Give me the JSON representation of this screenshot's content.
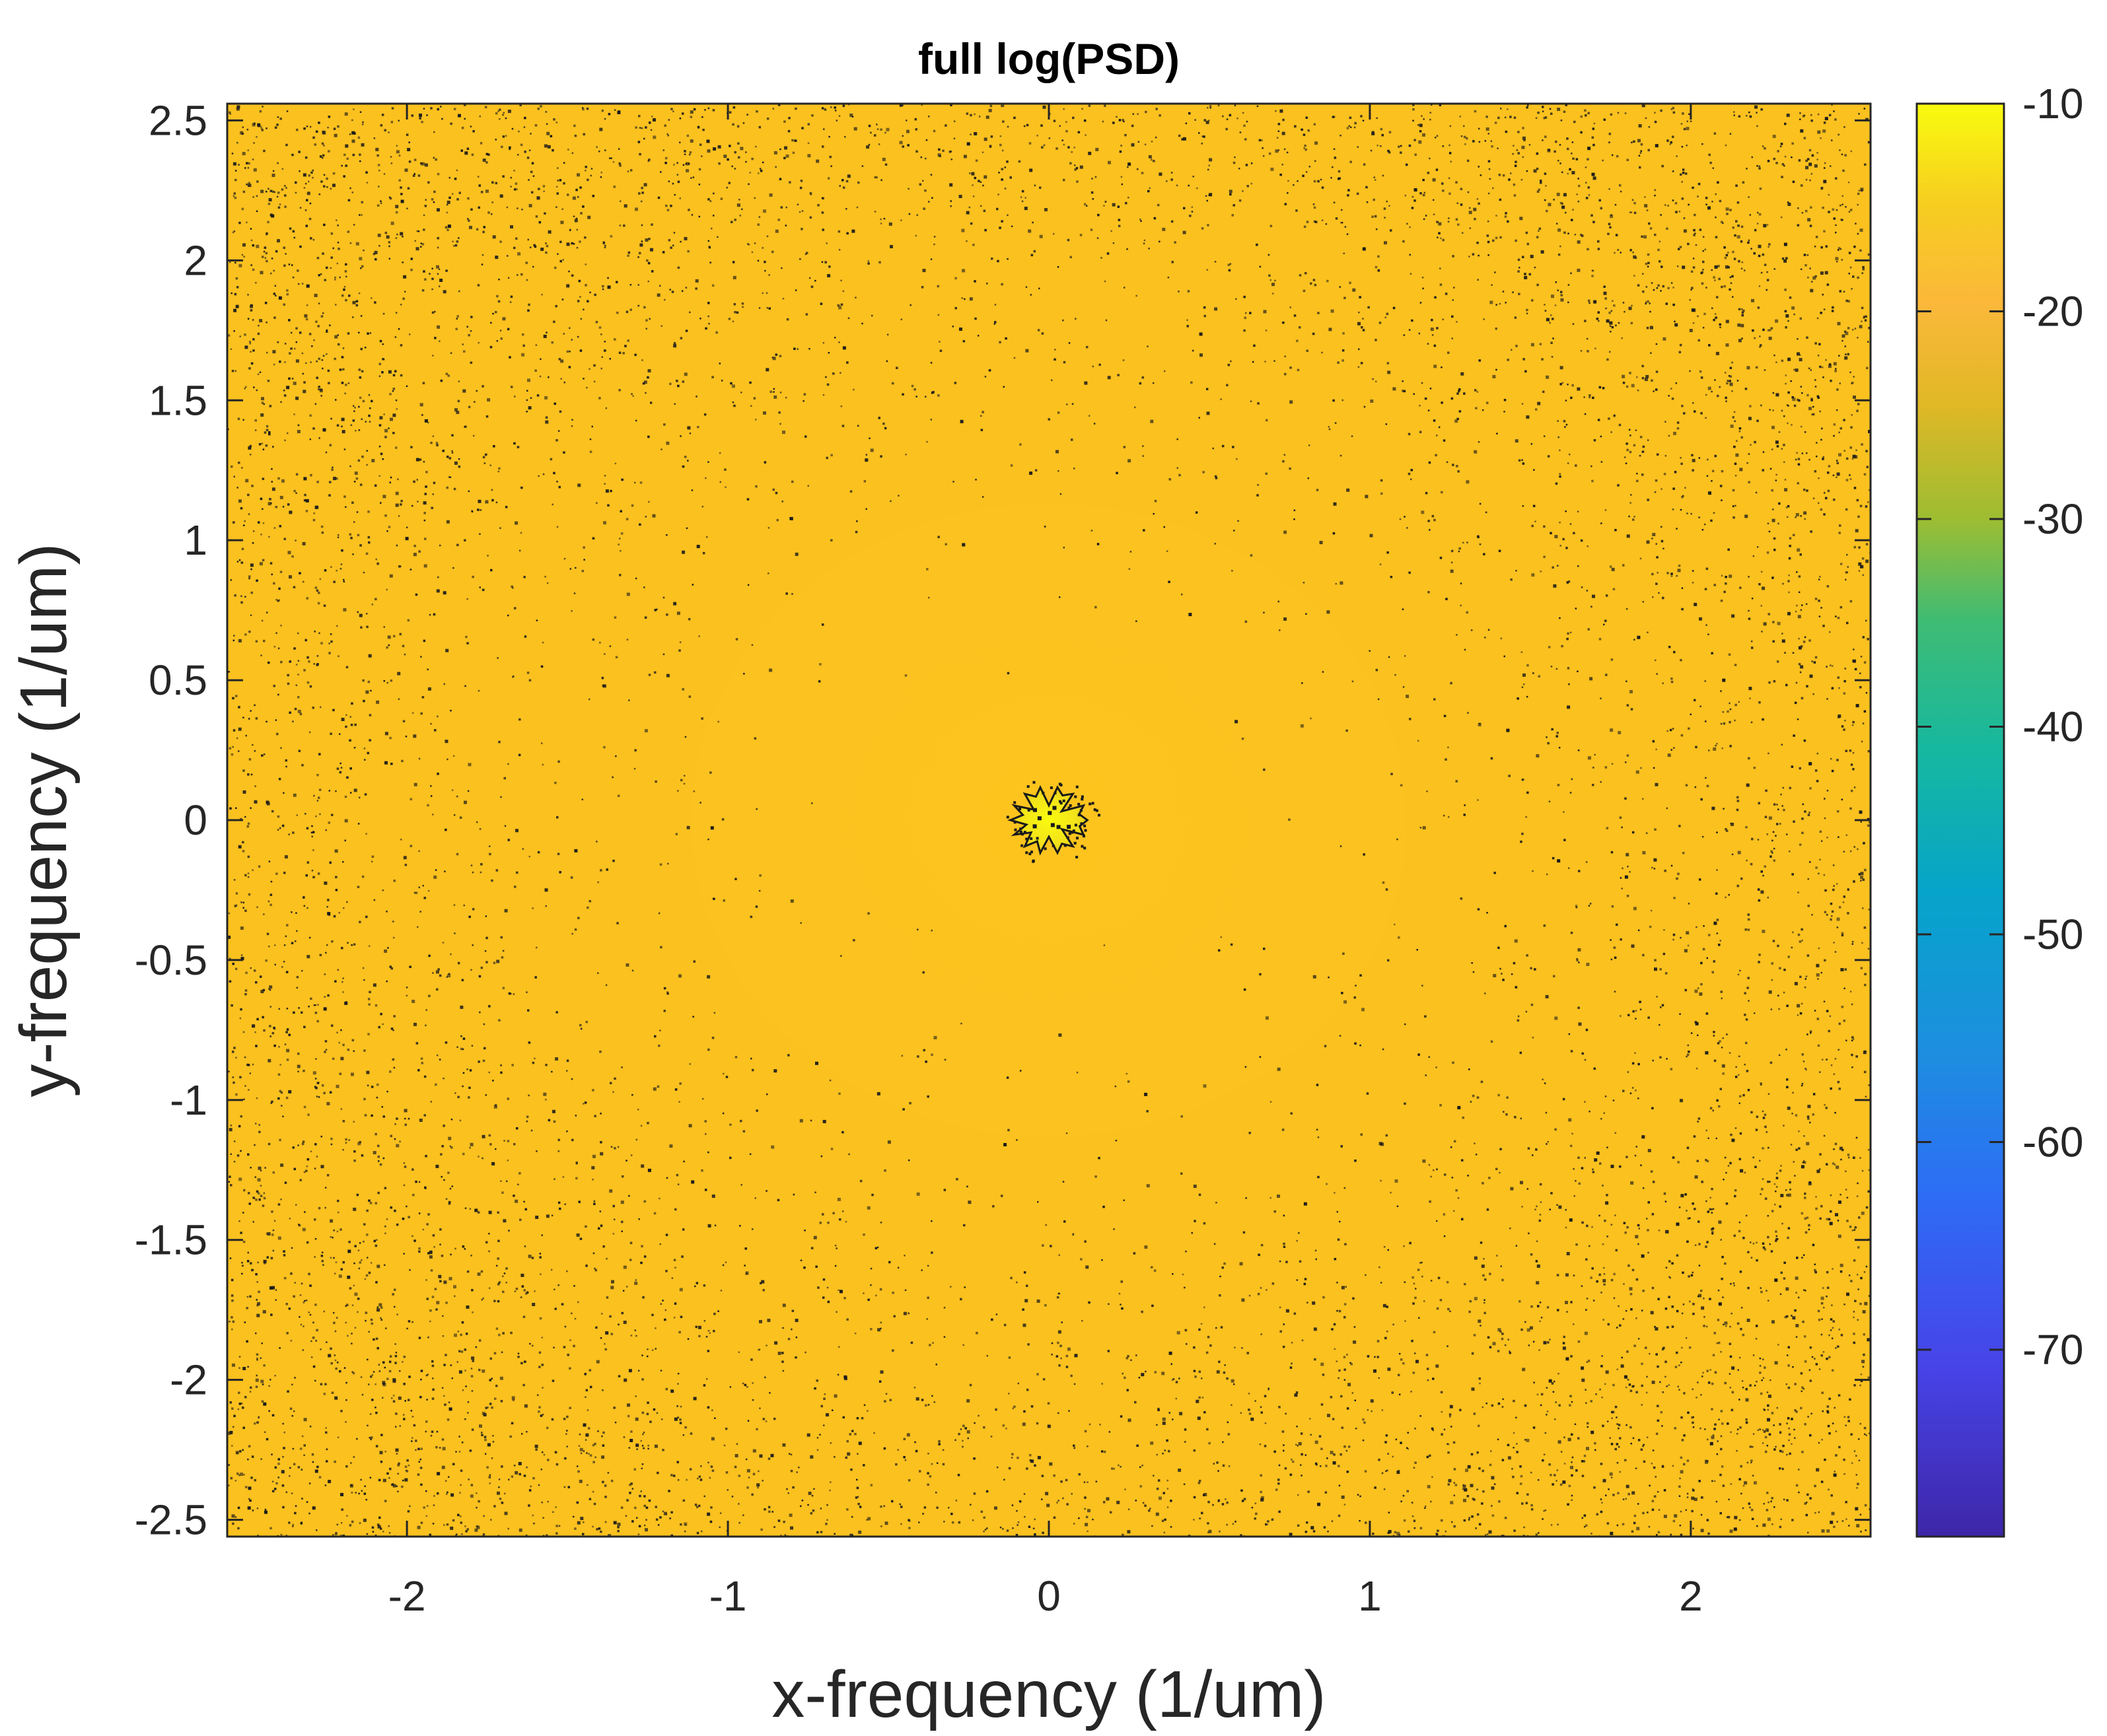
{
  "chart_data": {
    "type": "heatmap",
    "title": "full log(PSD)",
    "xlabel": "x-frequency (1/um)",
    "ylabel": "y-frequency (1/um)",
    "xlim": [
      -2.56,
      2.56
    ],
    "ylim": [
      -2.56,
      2.56
    ],
    "x_ticks": [
      -2,
      -1,
      0,
      1,
      2
    ],
    "x_tick_labels": [
      "-2",
      "-1",
      "0",
      "1",
      "2"
    ],
    "y_ticks": [
      -2.5,
      -2,
      -1.5,
      -1,
      -0.5,
      0,
      0.5,
      1,
      1.5,
      2,
      2.5
    ],
    "y_tick_labels": [
      "-2.5",
      "-2",
      "-1.5",
      "-1",
      "-0.5",
      "0",
      "0.5",
      "1",
      "1.5",
      "2",
      "2.5"
    ],
    "grid": false,
    "colormap": "parula",
    "colorbar": {
      "location": "right",
      "clim": [
        -79,
        -10
      ],
      "ticks": [
        -70,
        -60,
        -50,
        -40,
        -30,
        -20,
        -10
      ],
      "tick_labels": [
        "-70",
        "-60",
        "-50",
        "-40",
        "-30",
        "-20",
        "-10"
      ]
    },
    "background_value": -17,
    "background_color": "#FBC11F",
    "central_peak": {
      "x": 0,
      "y": 0,
      "radius": 0.12,
      "value": -11,
      "color": "#F5E81C"
    },
    "noise_dot_color": "#1A1A1A"
  }
}
